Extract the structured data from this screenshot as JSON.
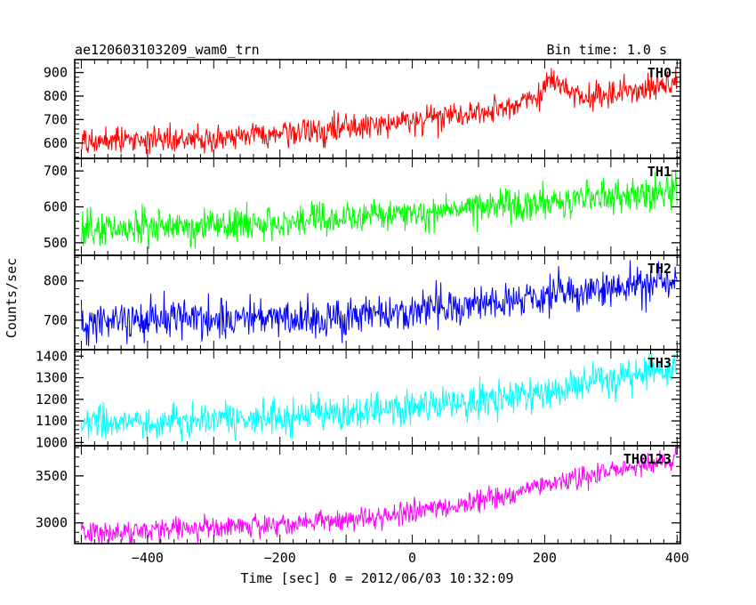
{
  "chart_data": {
    "type": "line",
    "title": "ae120603103209_wam0_trn",
    "subtitle": "Bin time: 1.0 s",
    "xlabel": "Time [sec] 0 = 2012/06/03 10:32:09",
    "ylabel": "Counts/sec",
    "xlim": [
      -510,
      405
    ],
    "xticks": [
      -400,
      -200,
      0,
      200,
      400
    ],
    "x_range": [
      -500,
      400
    ],
    "bin_time": 1.0,
    "panels": [
      {
        "name": "TH0",
        "color": "#ff0000",
        "ylim": [
          535,
          955
        ],
        "yticks": [
          600,
          700,
          800,
          900
        ],
        "trend": [
          [
            -500,
            605
          ],
          [
            -300,
            622
          ],
          [
            -100,
            660
          ],
          [
            100,
            725
          ],
          [
            190,
            785
          ],
          [
            210,
            875
          ],
          [
            260,
            790
          ],
          [
            400,
            860
          ]
        ],
        "noise": 30
      },
      {
        "name": "TH1",
        "color": "#00ff00",
        "ylim": [
          465,
          735
        ],
        "yticks": [
          500,
          600,
          700
        ],
        "trend": [
          [
            -500,
            538
          ],
          [
            -300,
            548
          ],
          [
            -100,
            565
          ],
          [
            100,
            595
          ],
          [
            250,
            620
          ],
          [
            400,
            645
          ]
        ],
        "noise": 24
      },
      {
        "name": "TH2",
        "color": "#0000ff",
        "ylim": [
          625,
          865
        ],
        "yticks": [
          700,
          800
        ],
        "trend": [
          [
            -500,
            697
          ],
          [
            -300,
            700
          ],
          [
            -100,
            710
          ],
          [
            100,
            740
          ],
          [
            250,
            775
          ],
          [
            400,
            800
          ]
        ],
        "noise": 26
      },
      {
        "name": "TH3",
        "color": "#00ffff",
        "ylim": [
          985,
          1430
        ],
        "yticks": [
          1000,
          1100,
          1200,
          1300,
          1400
        ],
        "trend": [
          [
            -500,
            1090
          ],
          [
            -300,
            1105
          ],
          [
            -100,
            1130
          ],
          [
            100,
            1190
          ],
          [
            250,
            1260
          ],
          [
            400,
            1360
          ]
        ],
        "noise": 40
      },
      {
        "name": "TH0123",
        "color": "#ff00ff",
        "ylim": [
          2780,
          3820
        ],
        "yticks": [
          3000,
          3500
        ],
        "trend": [
          [
            -500,
            2900
          ],
          [
            -300,
            2950
          ],
          [
            -100,
            3025
          ],
          [
            100,
            3230
          ],
          [
            250,
            3480
          ],
          [
            400,
            3680
          ]
        ],
        "noise": 60
      }
    ]
  }
}
